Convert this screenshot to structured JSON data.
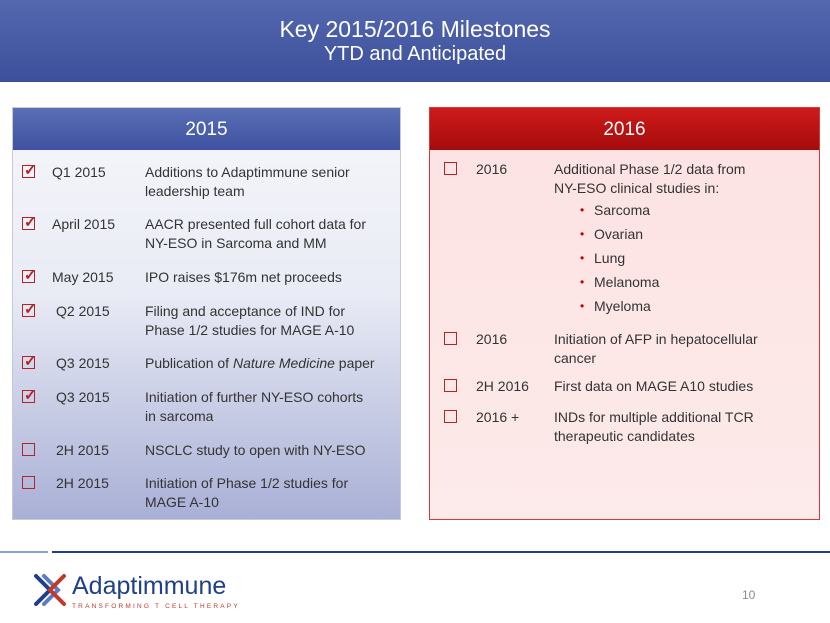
{
  "header": {
    "title": "Key 2015/2016 Milestones",
    "subtitle": "YTD and Anticipated"
  },
  "left_panel": {
    "heading": "2015",
    "items": [
      {
        "checked": true,
        "date": "Q1 2015",
        "desc_lines": [
          "Additions to Adaptimmune senior",
          "leadership team"
        ]
      },
      {
        "checked": true,
        "date": "April 2015",
        "desc_lines": [
          "AACR presented full cohort data for",
          "NY-ESO in Sarcoma and MM"
        ]
      },
      {
        "checked": true,
        "date": "May 2015",
        "desc_lines": [
          "IPO raises $176m net proceeds"
        ]
      },
      {
        "checked": true,
        "date": "Q2 2015",
        "desc_lines": [
          "Filing and acceptance of IND for",
          "Phase 1/2 studies for MAGE A-10"
        ]
      },
      {
        "checked": true,
        "date": "Q3 2015",
        "desc_prefix": "Publication of ",
        "desc_italic": "Nature Medicine",
        "desc_suffix": " paper"
      },
      {
        "checked": true,
        "date": "Q3 2015",
        "desc_lines": [
          "Initiation of further NY-ESO cohorts",
          "in sarcoma"
        ]
      },
      {
        "checked": false,
        "date": "2H 2015",
        "desc_lines": [
          "NSCLC study to open with NY-ESO"
        ]
      },
      {
        "checked": false,
        "date": "2H 2015",
        "desc_lines": [
          "Initiation of Phase 1/2 studies for",
          "MAGE A-10"
        ]
      }
    ]
  },
  "right_panel": {
    "heading": "2016",
    "items": [
      {
        "checked": false,
        "date": "2016",
        "desc_lines": [
          "Additional Phase 1/2 data from",
          "NY-ESO clinical studies in:"
        ],
        "bullets": [
          "Sarcoma",
          "Ovarian",
          "Lung",
          "Melanoma",
          "Myeloma"
        ]
      },
      {
        "checked": false,
        "date": "2016",
        "desc_lines": [
          "Initiation of AFP in hepatocellular",
          "cancer"
        ]
      },
      {
        "checked": false,
        "date": "2H 2016",
        "desc_lines": [
          "First data on MAGE A10 studies"
        ]
      },
      {
        "checked": false,
        "date": "2016 +",
        "desc_lines": [
          "INDs for multiple additional TCR",
          "therapeutic candidates"
        ]
      }
    ]
  },
  "footer": {
    "logo_name": "Adaptimmune",
    "logo_tagline": "TRANSFORMING T CELL THERAPY",
    "page_number": "10",
    "colors": {
      "brand_blue": "#1f3f8a",
      "brand_red": "#c0392b"
    }
  }
}
